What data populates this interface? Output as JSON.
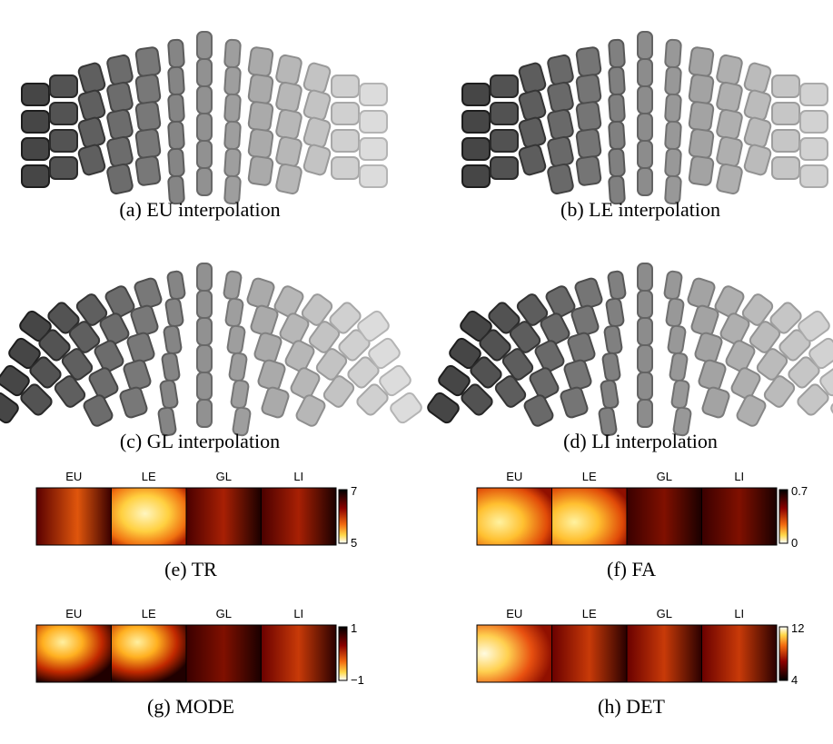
{
  "panels": [
    {
      "caption": "(a) EU interpolation"
    },
    {
      "caption": "(b) LE interpolation"
    },
    {
      "caption": "(c) GL interpolation"
    },
    {
      "caption": "(d) LI interpolation"
    }
  ],
  "maps": [
    {
      "caption": "(e) TR",
      "columns": [
        "EU",
        "LE",
        "GL",
        "LI"
      ],
      "colorbar": {
        "max": "7",
        "min": "5"
      }
    },
    {
      "caption": "(f) FA",
      "columns": [
        "EU",
        "LE",
        "GL",
        "LI"
      ],
      "colorbar": {
        "max": "0.7",
        "min": "0"
      }
    },
    {
      "caption": "(g) MODE",
      "columns": [
        "EU",
        "LE",
        "GL",
        "LI"
      ],
      "colorbar": {
        "max": "1",
        "min": "−1"
      }
    },
    {
      "caption": "(h) DET",
      "columns": [
        "EU",
        "LE",
        "GL",
        "LI"
      ],
      "colorbar": {
        "max": "12",
        "min": "4"
      }
    }
  ]
}
